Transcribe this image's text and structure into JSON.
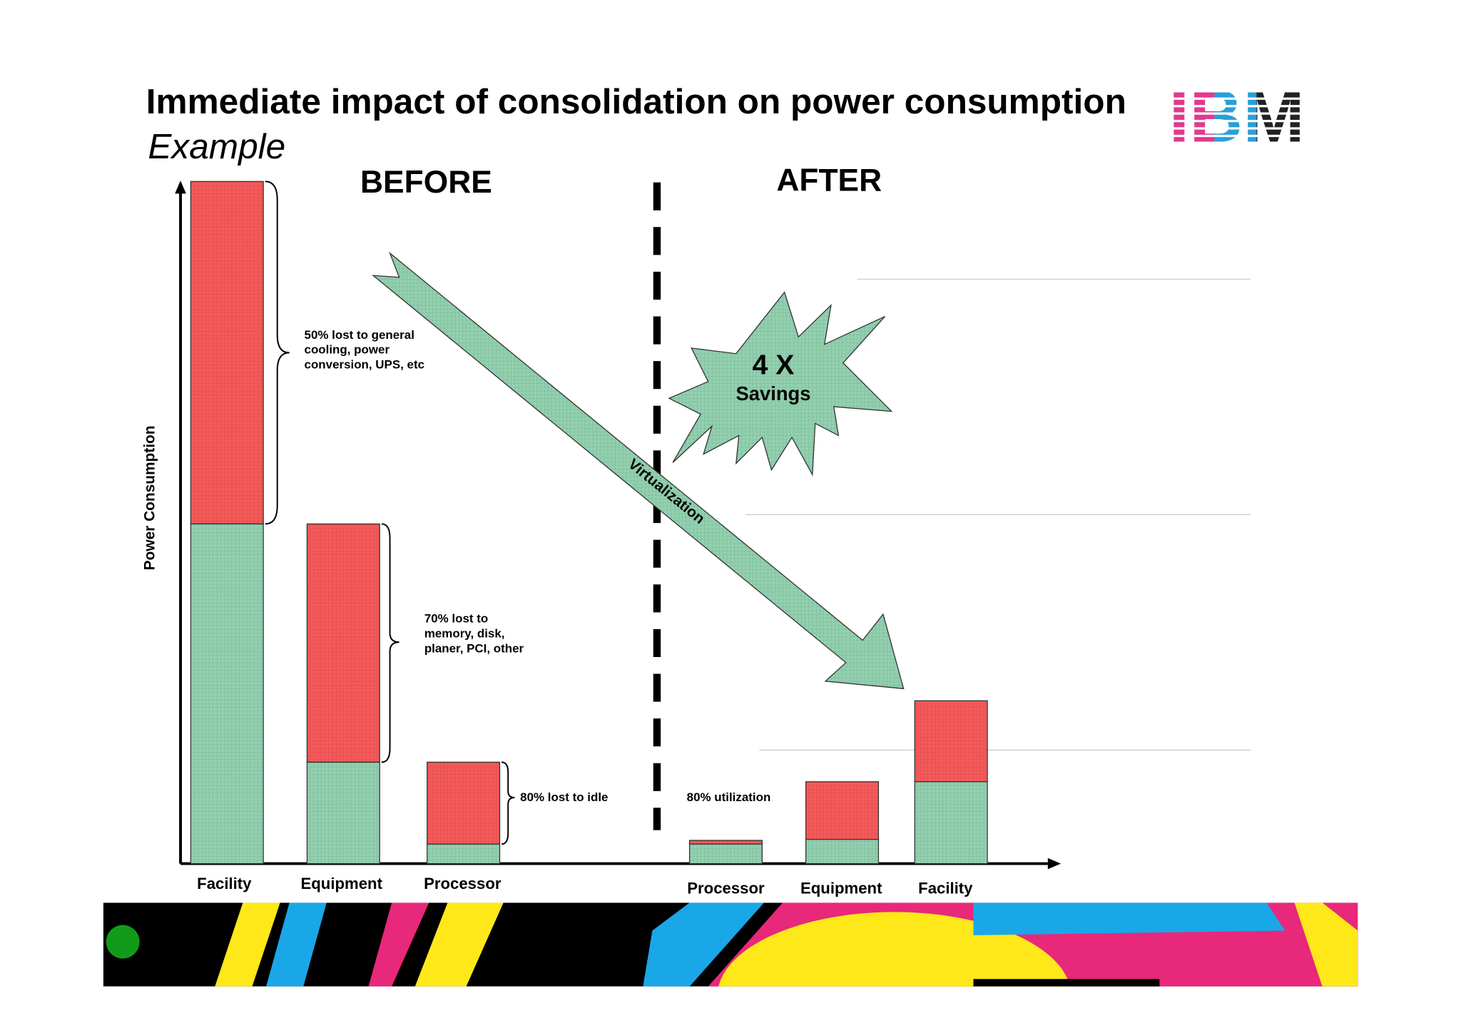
{
  "header": {
    "title": "Immediate impact of consolidation on power consumption",
    "subtitle": "Example",
    "logo": "IBM"
  },
  "sections": {
    "before": "BEFORE",
    "after": "AFTER"
  },
  "axis_label": "Power Consumption",
  "before_categories": [
    "Facility",
    "Equipment",
    "Processor"
  ],
  "after_categories": [
    "Processor",
    "Equipment",
    "Facility"
  ],
  "annotations": [
    "50% lost to general",
    "cooling, power",
    "conversion, UPS, etc",
    "70% lost to",
    "memory, disk,",
    "planer, PCI, other",
    "80% lost to idle",
    "80% utilization"
  ],
  "arrow_label": "Virtualization",
  "burst": {
    "big": "4 X",
    "small": "Savings"
  }
}
